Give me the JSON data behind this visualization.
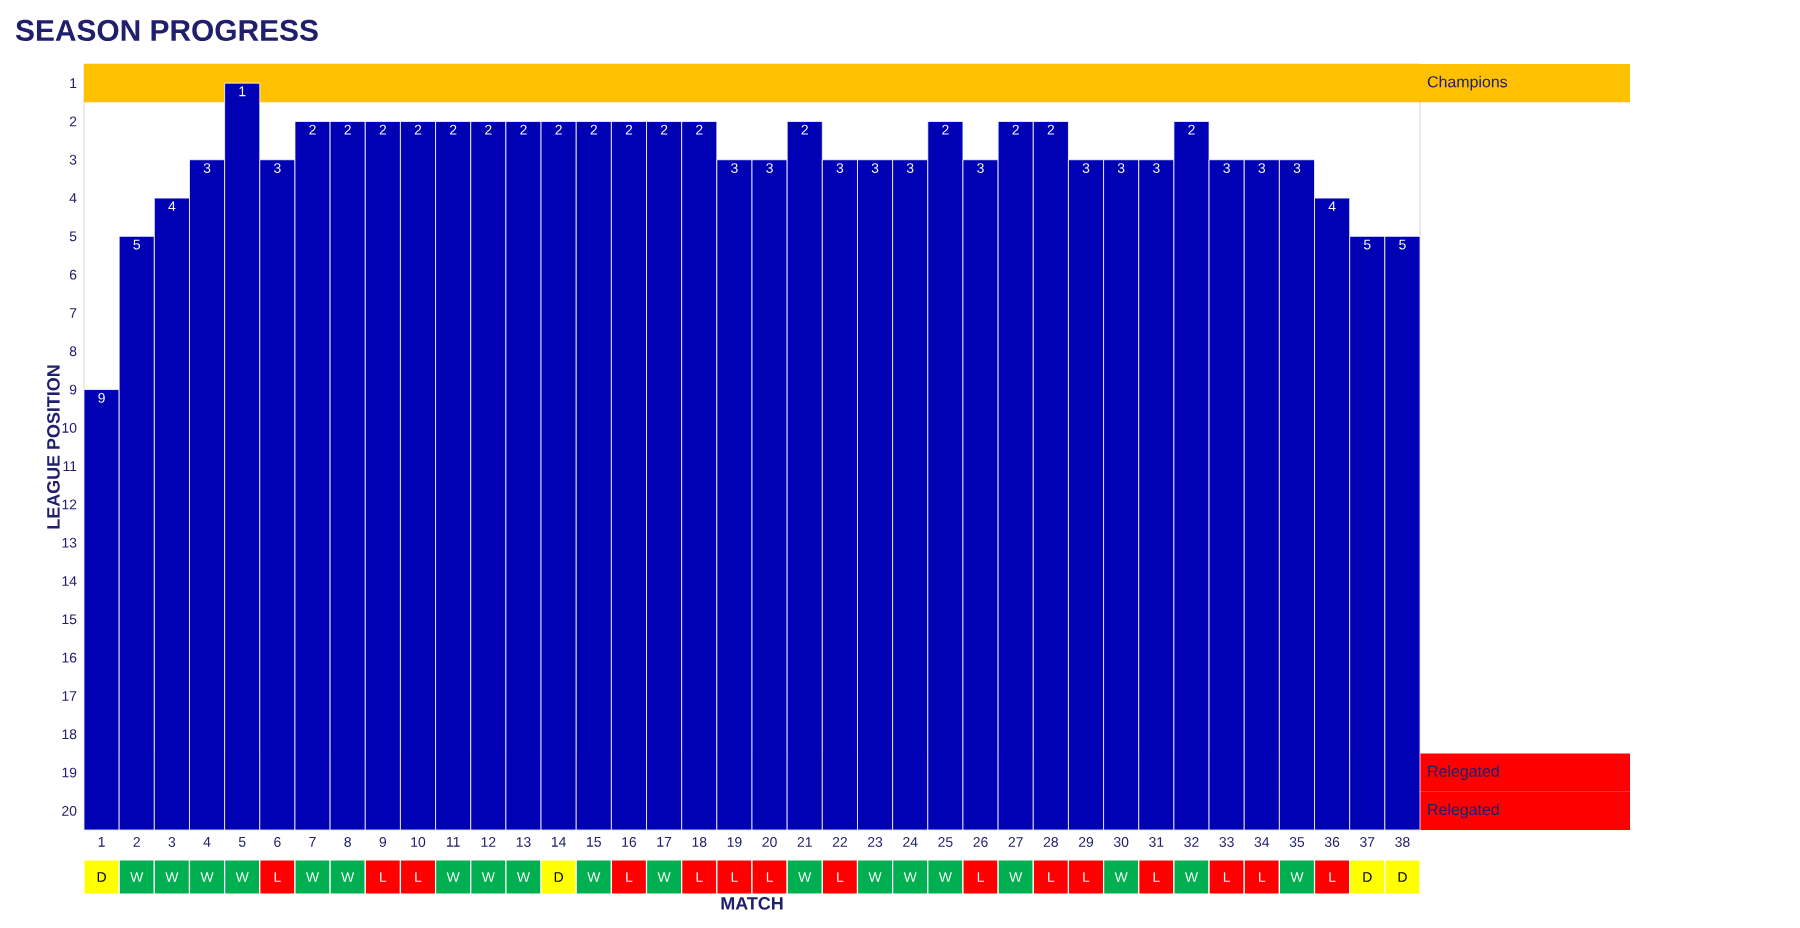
{
  "chart_data": [
    {
      "type": "bar",
      "title": "SEASON PROGRESS",
      "ylabel": "LEAGUE POSITION",
      "categories": [
        "1",
        "2",
        "3",
        "4",
        "5",
        "6",
        "7",
        "8",
        "9",
        "10",
        "11",
        "12",
        "13",
        "14",
        "15",
        "16",
        "17",
        "18",
        "19",
        "20",
        "21",
        "22",
        "23",
        "24",
        "25",
        "26",
        "27",
        "28",
        "29",
        "30",
        "31",
        "32",
        "33",
        "34",
        "35",
        "36",
        "37",
        "38"
      ],
      "base": [
        20.5,
        20.5,
        20.5,
        20.5,
        20.5,
        20.5,
        20.5,
        20.5,
        20.5,
        20.5,
        20.5,
        20.5,
        20.5,
        20.5,
        20.5,
        20.5,
        20.5,
        20.5,
        20.5,
        20.5,
        20.5,
        20.5,
        20.5,
        20.5,
        20.5,
        20.5,
        20.5,
        20.5,
        20.5,
        20.5,
        20.5,
        20.5,
        20.5,
        20.5,
        20.5,
        20.5,
        20.5,
        20.5
      ],
      "values": [
        -11.5,
        -15.5,
        -16.5,
        -17.5,
        -19.5,
        -17.5,
        -18.5,
        -18.5,
        -18.5,
        -18.5,
        -18.5,
        -18.5,
        -18.5,
        -18.5,
        -18.5,
        -18.5,
        -18.5,
        -18.5,
        -17.5,
        -17.5,
        -18.5,
        -17.5,
        -17.5,
        -17.5,
        -18.5,
        -17.5,
        -18.5,
        -18.5,
        -17.5,
        -17.5,
        -17.5,
        -18.5,
        -17.5,
        -17.5,
        -17.5,
        -16.5,
        -15.5,
        -15.5
      ],
      "value_labels": [
        "9",
        "5",
        "4",
        "3",
        "1",
        "3",
        "2",
        "2",
        "2",
        "2",
        "2",
        "2",
        "2",
        "2",
        "2",
        "2",
        "2",
        "2",
        "3",
        "3",
        "2",
        "3",
        "3",
        "3",
        "2",
        "3",
        "2",
        "2",
        "3",
        "3",
        "3",
        "2",
        "3",
        "3",
        "3",
        "4",
        "5",
        "5"
      ],
      "color": "#0000b4",
      "ylim": [
        20.5,
        0.5
      ],
      "yticks": [
        1,
        2,
        3,
        4,
        5,
        6,
        7,
        8,
        9,
        10,
        11,
        12,
        13,
        14,
        15,
        16,
        17,
        18,
        19,
        20
      ],
      "bands": [
        {
          "axis": "y",
          "from": 0.5,
          "to": 1.5,
          "label": "Champions",
          "color": "#ffc000"
        },
        {
          "axis": "y",
          "from": 18.5,
          "to": 19.5,
          "label": "Relegated",
          "color": "#ff0000"
        },
        {
          "axis": "y",
          "from": 19.5,
          "to": 20.5,
          "label": "Relegated",
          "color": "#ff0000"
        }
      ]
    },
    {
      "type": "other",
      "xlabel": "MATCH",
      "annotations": [
        "D",
        "W",
        "W",
        "W",
        "W",
        "L",
        "W",
        "W",
        "L",
        "L",
        "W",
        "W",
        "W",
        "D",
        "W",
        "L",
        "W",
        "L",
        "L",
        "L",
        "W",
        "L",
        "W",
        "W",
        "W",
        "L",
        "W",
        "L",
        "L",
        "W",
        "L",
        "W",
        "L",
        "L",
        "W",
        "L",
        "D",
        "D"
      ],
      "colors": [
        "#ffff00",
        "#00b050",
        "#00b050",
        "#00b050",
        "#00b050",
        "#ff0000",
        "#00b050",
        "#00b050",
        "#ff0000",
        "#ff0000",
        "#00b050",
        "#00b050",
        "#00b050",
        "#ffff00",
        "#00b050",
        "#ff0000",
        "#00b050",
        "#ff0000",
        "#ff0000",
        "#ff0000",
        "#00b050",
        "#ff0000",
        "#00b050",
        "#00b050",
        "#00b050",
        "#ff0000",
        "#00b050",
        "#ff0000",
        "#ff0000",
        "#00b050",
        "#ff0000",
        "#00b050",
        "#ff0000",
        "#ff0000",
        "#00b050",
        "#ff0000",
        "#ffff00",
        "#ffff00"
      ]
    }
  ]
}
